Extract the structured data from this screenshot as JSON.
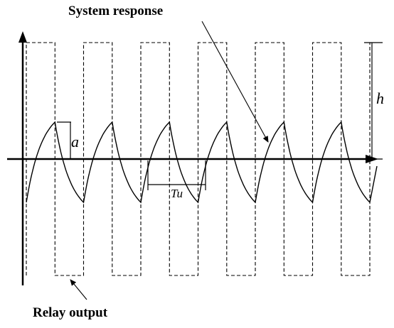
{
  "labels": {
    "system_response": "System response",
    "relay_output": "Relay output",
    "h": "h",
    "a": "a",
    "tu": "Tu"
  }
}
